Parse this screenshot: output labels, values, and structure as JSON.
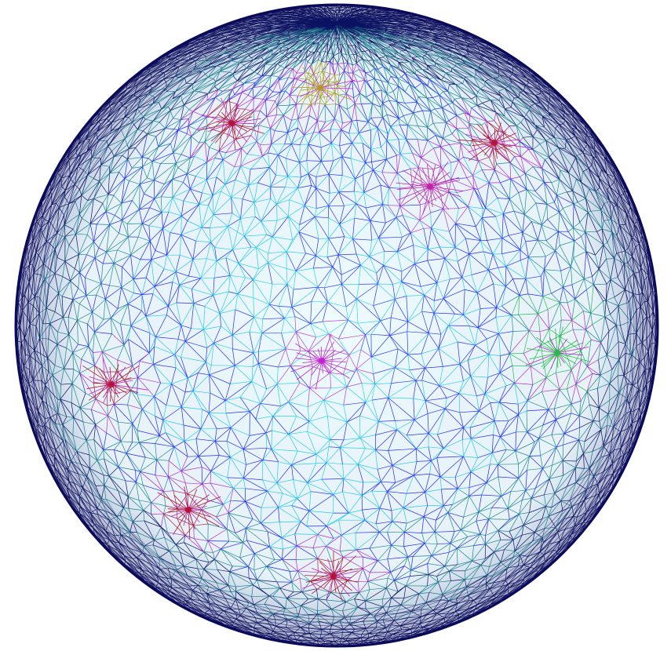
{
  "scene": {
    "object": "wireframe-sphere",
    "background_color": "#ffffff",
    "colors": {
      "dark_navy": "#0a0a5a",
      "blue": "#1a1aff",
      "cyan": "#20d0e8",
      "teal": "#1a8a8a",
      "magenta": "#c020d0",
      "red_hub": "#b01030",
      "green": "#20c040"
    },
    "hubs": [
      {
        "name": "hub-upper-left",
        "color": "#b01030"
      },
      {
        "name": "hub-top",
        "color": "#b0a020"
      },
      {
        "name": "hub-upper-right",
        "color": "#b01030"
      },
      {
        "name": "hub-right-upper",
        "color": "#c020a0"
      },
      {
        "name": "hub-left",
        "color": "#b01030"
      },
      {
        "name": "hub-center",
        "color": "#c020d0"
      },
      {
        "name": "hub-lower-left",
        "color": "#b01030"
      },
      {
        "name": "hub-bottom",
        "color": "#b01030"
      },
      {
        "name": "hub-right",
        "color": "#20c040"
      }
    ]
  }
}
